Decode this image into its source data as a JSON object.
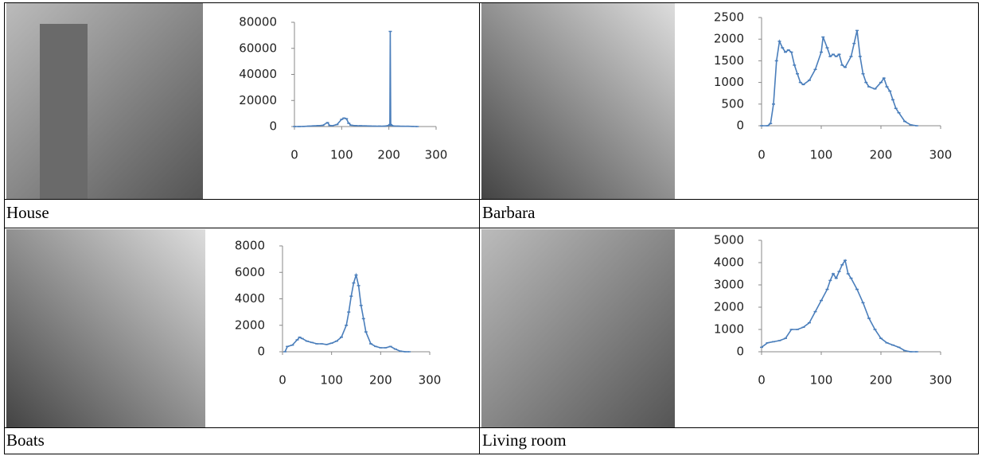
{
  "captions": [
    "House",
    "Barbara",
    "Boats",
    "Living room"
  ],
  "chart_data": [
    {
      "type": "line",
      "color": "#4a7ebb",
      "xlim": [
        0,
        300
      ],
      "xticks": [
        0,
        100,
        200,
        300
      ],
      "ylim": [
        0,
        80000
      ],
      "yticks": [
        0,
        20000,
        40000,
        60000,
        80000
      ],
      "x": [
        0,
        10,
        20,
        30,
        40,
        50,
        60,
        70,
        75,
        80,
        90,
        100,
        105,
        110,
        115,
        120,
        130,
        140,
        150,
        160,
        170,
        180,
        190,
        200,
        202,
        203,
        204,
        206,
        210,
        220,
        230,
        240,
        250,
        260
      ],
      "values": [
        0,
        0,
        100,
        300,
        500,
        700,
        900,
        3000,
        800,
        600,
        1500,
        5500,
        6500,
        6000,
        2500,
        1000,
        700,
        600,
        500,
        400,
        300,
        300,
        300,
        800,
        1500,
        73000,
        1500,
        800,
        400,
        300,
        200,
        200,
        100,
        0
      ]
    },
    {
      "type": "line",
      "color": "#4a7ebb",
      "xlim": [
        0,
        300
      ],
      "xticks": [
        0,
        100,
        200,
        300
      ],
      "ylim": [
        0,
        2500
      ],
      "yticks": [
        0,
        500,
        1000,
        1500,
        2000,
        2500
      ],
      "x": [
        0,
        10,
        15,
        20,
        25,
        30,
        35,
        40,
        45,
        50,
        55,
        60,
        65,
        70,
        80,
        90,
        100,
        103,
        110,
        115,
        120,
        125,
        130,
        135,
        140,
        150,
        155,
        160,
        165,
        170,
        175,
        180,
        190,
        200,
        205,
        210,
        215,
        220,
        225,
        230,
        240,
        250,
        260
      ],
      "values": [
        0,
        0,
        50,
        500,
        1500,
        1950,
        1800,
        1700,
        1750,
        1700,
        1400,
        1200,
        1000,
        950,
        1050,
        1300,
        1700,
        2050,
        1800,
        1600,
        1650,
        1600,
        1650,
        1400,
        1350,
        1600,
        1900,
        2200,
        1600,
        1200,
        1000,
        900,
        850,
        1000,
        1100,
        900,
        800,
        600,
        400,
        300,
        100,
        20,
        0
      ]
    },
    {
      "type": "line",
      "color": "#4a7ebb",
      "xlim": [
        0,
        300
      ],
      "xticks": [
        0,
        100,
        200,
        300
      ],
      "ylim": [
        0,
        8000
      ],
      "yticks": [
        0,
        2000,
        4000,
        6000,
        8000
      ],
      "x": [
        5,
        10,
        20,
        30,
        35,
        40,
        50,
        60,
        70,
        80,
        90,
        100,
        110,
        120,
        130,
        135,
        140,
        145,
        150,
        155,
        160,
        165,
        170,
        180,
        190,
        200,
        210,
        220,
        230,
        240,
        250,
        258
      ],
      "values": [
        0,
        400,
        500,
        900,
        1100,
        1000,
        800,
        700,
        600,
        600,
        550,
        650,
        800,
        1100,
        2000,
        3000,
        4200,
        5200,
        5800,
        5000,
        3500,
        2500,
        1500,
        600,
        400,
        300,
        300,
        400,
        200,
        50,
        0,
        0
      ]
    },
    {
      "type": "line",
      "color": "#4a7ebb",
      "xlim": [
        0,
        300
      ],
      "xticks": [
        0,
        100,
        200,
        300
      ],
      "ylim": [
        0,
        5000
      ],
      "yticks": [
        0,
        1000,
        2000,
        3000,
        4000,
        5000
      ],
      "x": [
        0,
        10,
        20,
        30,
        40,
        50,
        60,
        70,
        80,
        90,
        100,
        110,
        115,
        120,
        125,
        130,
        135,
        140,
        145,
        150,
        160,
        170,
        180,
        190,
        200,
        210,
        220,
        230,
        240,
        250,
        260
      ],
      "values": [
        200,
        400,
        450,
        500,
        600,
        1000,
        1000,
        1100,
        1300,
        1800,
        2300,
        2800,
        3200,
        3500,
        3300,
        3600,
        3900,
        4100,
        3500,
        3300,
        2800,
        2200,
        1500,
        1000,
        600,
        400,
        300,
        200,
        50,
        0,
        0
      ]
    }
  ]
}
